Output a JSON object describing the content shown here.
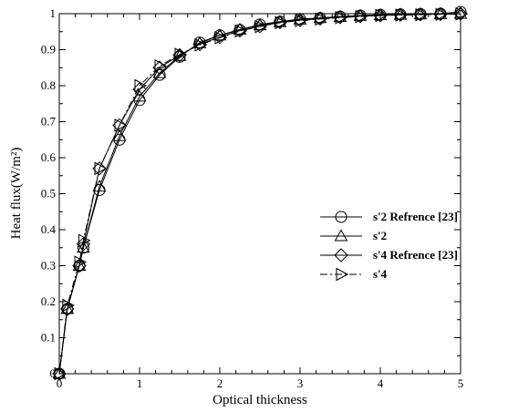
{
  "chart_data": {
    "type": "line",
    "title": "",
    "xlabel": "Optical thickness",
    "ylabel": "Heat flux(W/m²)",
    "xlim": [
      0,
      5
    ],
    "ylim": [
      0,
      1
    ],
    "xticks": [
      "0",
      "1",
      "2",
      "3",
      "4",
      "5"
    ],
    "yticks": [
      "0",
      "0.1",
      "0.2",
      "0.3",
      "0.4",
      "0.5",
      "0.6",
      "0.7",
      "0.8",
      "0.9",
      "1"
    ],
    "grid": false,
    "legend": "right",
    "series": [
      {
        "name": "s'2 Refrence [23]",
        "marker": "circle",
        "line": "solid",
        "x": [
          0,
          0.1,
          0.25,
          0.3,
          0.5,
          0.75,
          1.0,
          1.25,
          1.5,
          1.75,
          2.0,
          2.25,
          2.5,
          2.75,
          3.0,
          3.25,
          3.5,
          3.75,
          4.0,
          4.25,
          4.5,
          4.75,
          5.0
        ],
        "y": [
          0,
          0.18,
          0.3,
          0.35,
          0.51,
          0.65,
          0.76,
          0.83,
          0.88,
          0.92,
          0.94,
          0.955,
          0.97,
          0.978,
          0.985,
          0.988,
          0.992,
          0.995,
          0.997,
          0.998,
          0.999,
          1.0,
          1.005
        ]
      },
      {
        "name": "s'2",
        "marker": "triangle-up",
        "line": "solid",
        "x": [
          0,
          0.1,
          0.25,
          0.3,
          0.5,
          0.75,
          1.0,
          1.25,
          1.5,
          1.75,
          2.0,
          2.25,
          2.5,
          2.75,
          3.0,
          3.25,
          3.5,
          3.75,
          4.0,
          4.25,
          4.5,
          4.75,
          5.0
        ],
        "y": [
          0,
          0.18,
          0.3,
          0.35,
          0.52,
          0.66,
          0.77,
          0.835,
          0.883,
          0.918,
          0.94,
          0.956,
          0.968,
          0.977,
          0.984,
          0.988,
          0.991,
          0.994,
          0.996,
          0.997,
          0.998,
          0.999,
          1.0
        ]
      },
      {
        "name": "s'4 Refrence [23]",
        "marker": "diamond",
        "line": "solid",
        "x": [
          0,
          0.1,
          0.25,
          0.3,
          0.5,
          0.75,
          1.0,
          1.25,
          1.5,
          1.75,
          2.0,
          2.25,
          2.5,
          2.75,
          3.0,
          3.25,
          3.5,
          3.75,
          4.0,
          4.25,
          4.5,
          4.75,
          5.0
        ],
        "y": [
          0,
          0.18,
          0.3,
          0.36,
          0.57,
          0.69,
          0.79,
          0.85,
          0.885,
          0.915,
          0.935,
          0.953,
          0.965,
          0.976,
          0.982,
          0.986,
          0.99,
          0.993,
          0.995,
          0.997,
          0.998,
          0.999,
          1.0
        ]
      },
      {
        "name": "s'4",
        "marker": "triangle-right",
        "line": "dashdot",
        "x": [
          0,
          0.1,
          0.25,
          0.3,
          0.5,
          0.75,
          1.0,
          1.25,
          1.5,
          1.75,
          2.0,
          2.25,
          2.5,
          2.75,
          3.0,
          3.25,
          3.5,
          3.75,
          4.0,
          4.25,
          4.5,
          4.75,
          5.0
        ],
        "y": [
          0,
          0.19,
          0.31,
          0.37,
          0.57,
          0.69,
          0.8,
          0.855,
          0.887,
          0.913,
          0.933,
          0.952,
          0.964,
          0.975,
          0.981,
          0.985,
          0.989,
          0.992,
          0.995,
          0.996,
          0.997,
          0.998,
          0.999
        ]
      }
    ]
  }
}
